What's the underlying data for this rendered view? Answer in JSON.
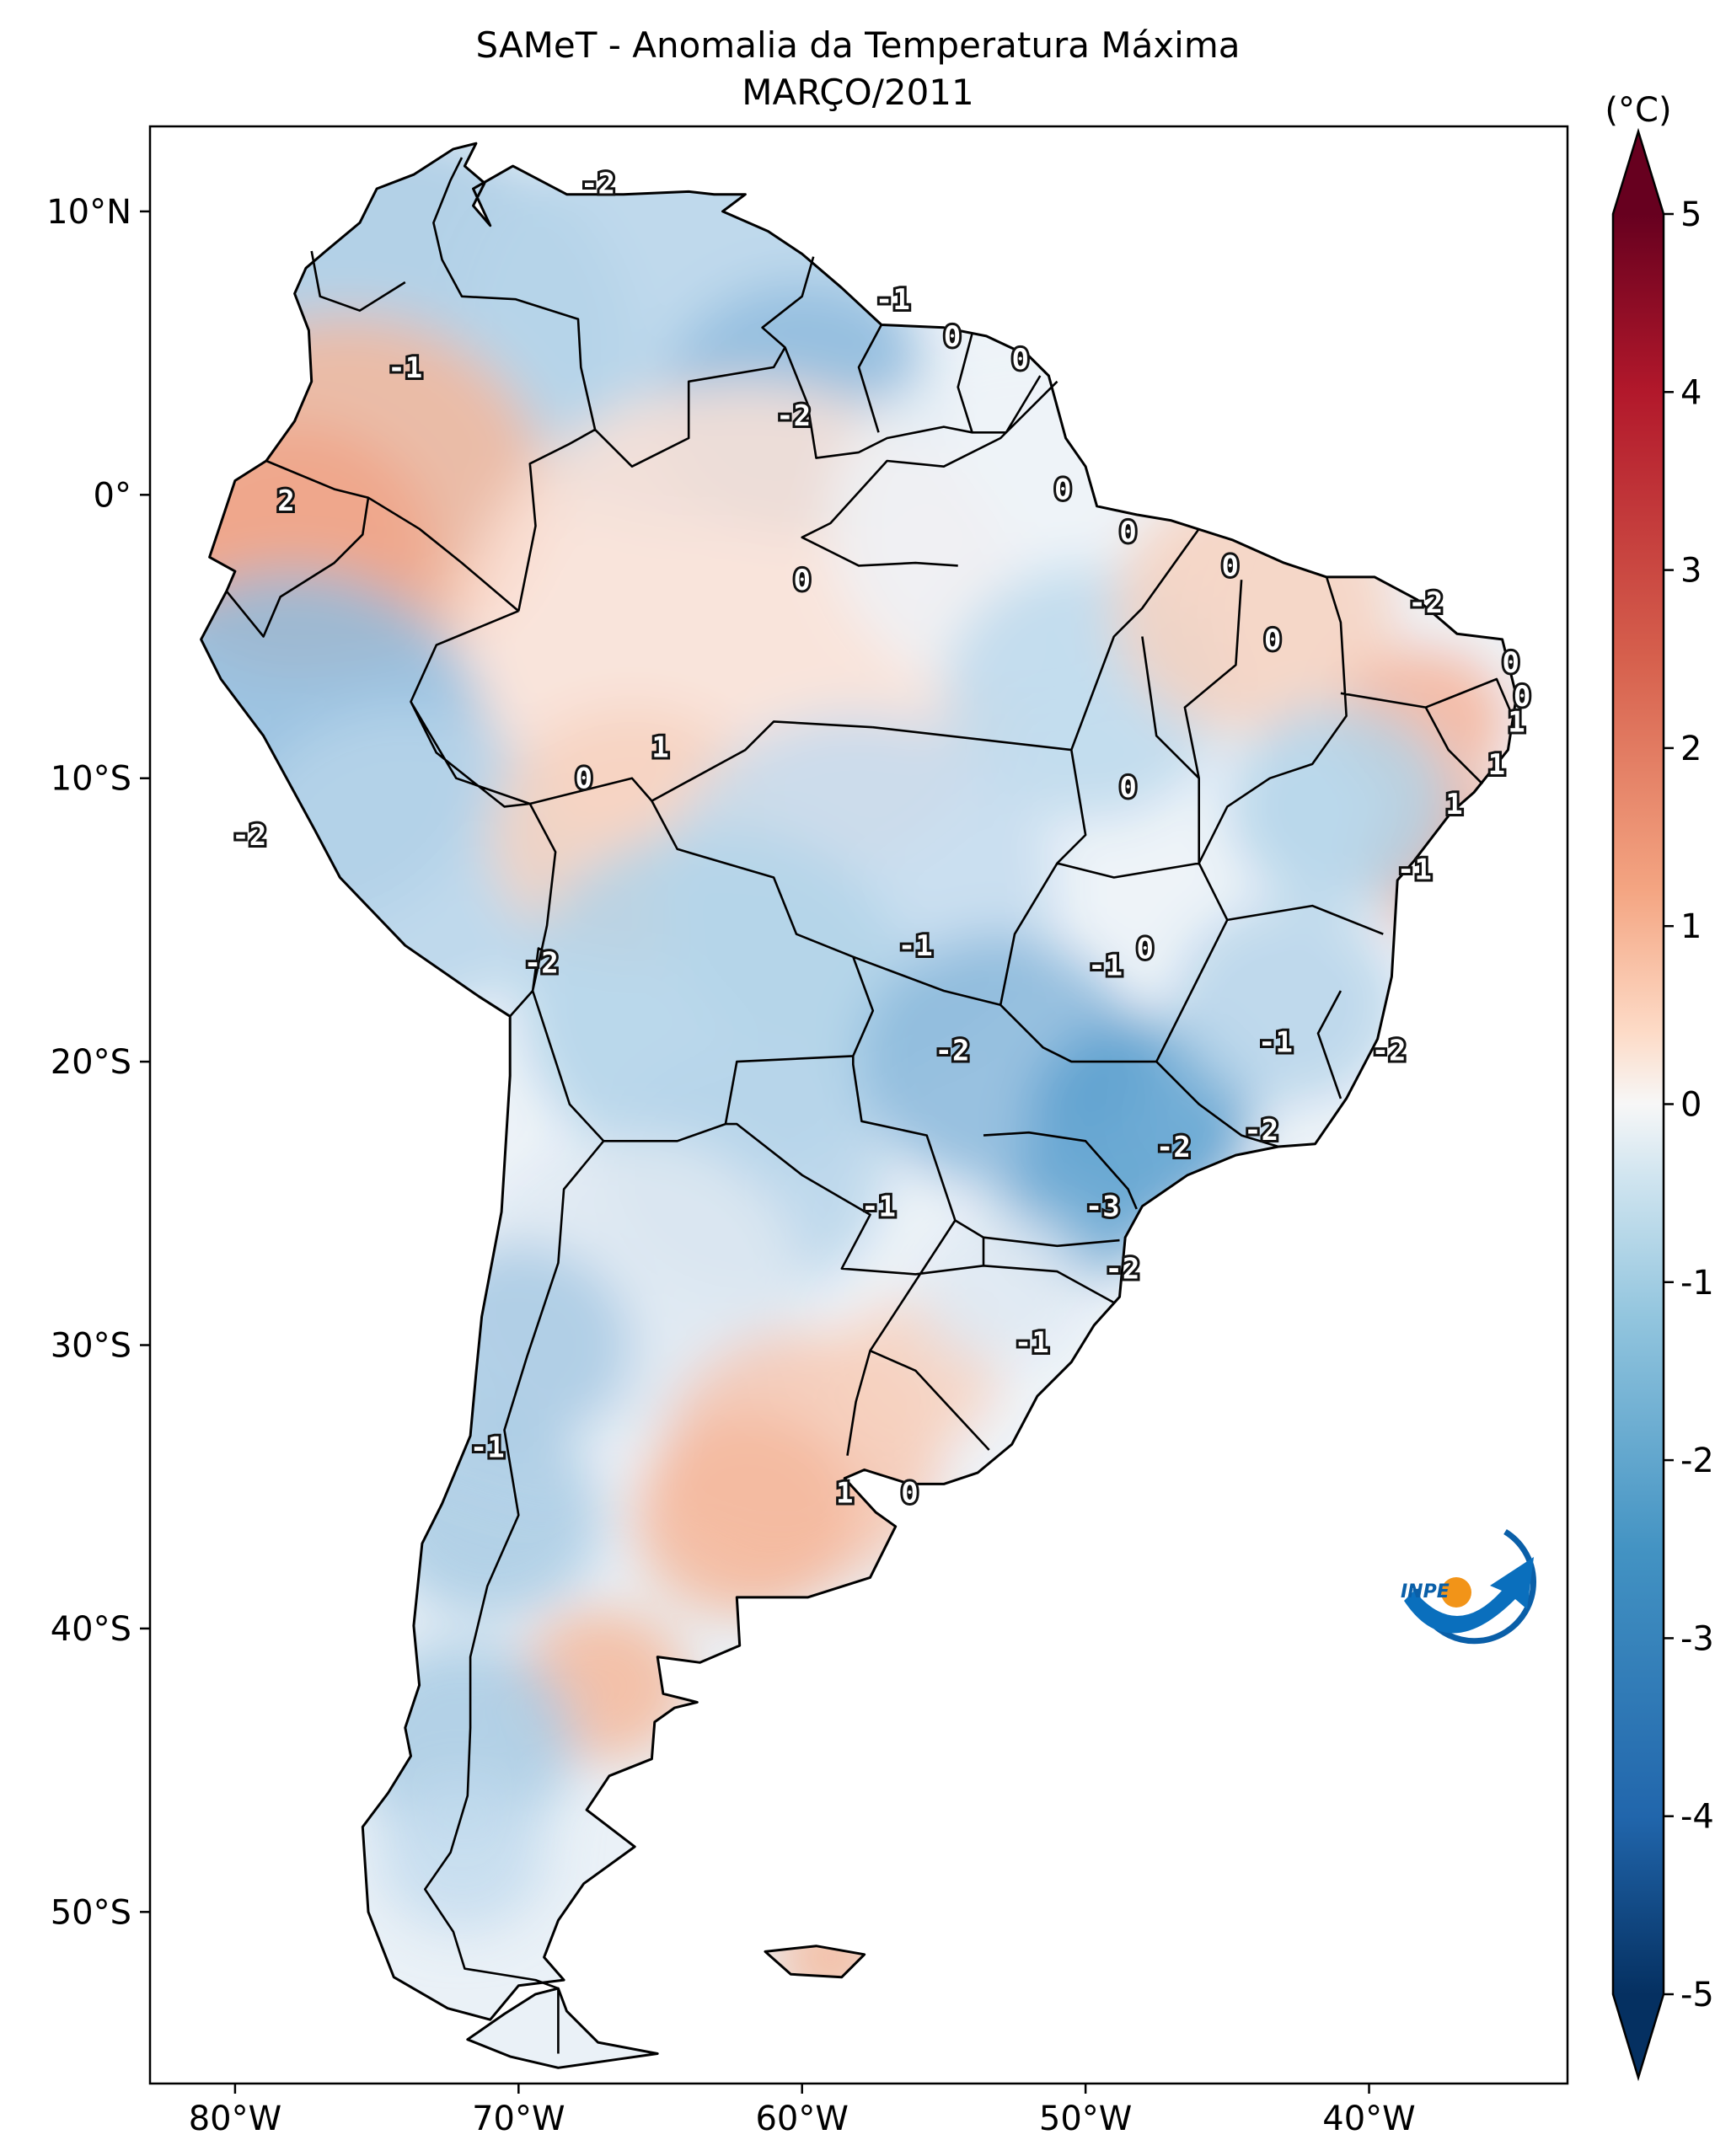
{
  "title_line1": "SAMeT - Anomalia da Temperatura Máxima",
  "title_line2": "MARÇO/2011",
  "colorbar": {
    "unit": "(°C)",
    "ticks": [
      "5",
      "4",
      "3",
      "2",
      "1",
      "0",
      "-1",
      "-2",
      "-3",
      "-4",
      "-5"
    ]
  },
  "lat_labels": [
    "10°N",
    "0°",
    "10°S",
    "20°S",
    "30°S",
    "40°S",
    "50°S"
  ],
  "lon_labels": [
    "80°W",
    "70°W",
    "60°W",
    "50°W",
    "40°W"
  ],
  "contour_labels": [
    {
      "t": "-2",
      "lon": -67.2,
      "lat": 11.0
    },
    {
      "t": "-1",
      "lon": -56.8,
      "lat": 6.9
    },
    {
      "t": "0",
      "lon": -54.7,
      "lat": 5.6
    },
    {
      "t": "0",
      "lon": -52.3,
      "lat": 4.8
    },
    {
      "t": "-1",
      "lon": -74.0,
      "lat": 4.5
    },
    {
      "t": "-2",
      "lon": -60.3,
      "lat": 2.8
    },
    {
      "t": "2",
      "lon": -78.2,
      "lat": -0.2
    },
    {
      "t": "0",
      "lon": -50.8,
      "lat": 0.2
    },
    {
      "t": "0",
      "lon": -48.5,
      "lat": -1.3
    },
    {
      "t": "0",
      "lon": -44.9,
      "lat": -2.5
    },
    {
      "t": "0",
      "lon": -60.0,
      "lat": -3.0
    },
    {
      "t": "-2",
      "lon": -38.0,
      "lat": -3.8
    },
    {
      "t": "0",
      "lon": -43.4,
      "lat": -5.1
    },
    {
      "t": "0",
      "lon": -35.0,
      "lat": -5.9
    },
    {
      "t": "0",
      "lon": -34.6,
      "lat": -7.1
    },
    {
      "t": "1",
      "lon": -34.8,
      "lat": -8.0
    },
    {
      "t": "1",
      "lon": -65.0,
      "lat": -8.9
    },
    {
      "t": "0",
      "lon": -67.7,
      "lat": -10.0
    },
    {
      "t": "1",
      "lon": -35.5,
      "lat": -9.5
    },
    {
      "t": "0",
      "lon": -48.5,
      "lat": -10.3
    },
    {
      "t": "1",
      "lon": -37.0,
      "lat": -10.9
    },
    {
      "t": "-2",
      "lon": -79.5,
      "lat": -12.0
    },
    {
      "t": "-1",
      "lon": -38.4,
      "lat": -13.2
    },
    {
      "t": "-1",
      "lon": -56.0,
      "lat": -15.9
    },
    {
      "t": "0",
      "lon": -47.9,
      "lat": -16.0
    },
    {
      "t": "-2",
      "lon": -69.2,
      "lat": -16.5
    },
    {
      "t": "-1",
      "lon": -49.3,
      "lat": -16.6
    },
    {
      "t": "-1",
      "lon": -43.3,
      "lat": -19.3
    },
    {
      "t": "-2",
      "lon": -54.7,
      "lat": -19.6
    },
    {
      "t": "-2",
      "lon": -39.3,
      "lat": -19.6
    },
    {
      "t": "-2",
      "lon": -46.9,
      "lat": -23.0
    },
    {
      "t": "-2",
      "lon": -43.8,
      "lat": -22.4
    },
    {
      "t": "-1",
      "lon": -57.3,
      "lat": -25.1
    },
    {
      "t": "-3",
      "lon": -49.4,
      "lat": -25.1
    },
    {
      "t": "-2",
      "lon": -48.7,
      "lat": -27.3
    },
    {
      "t": "-1",
      "lon": -51.9,
      "lat": -29.9
    },
    {
      "t": "-1",
      "lon": -71.1,
      "lat": -33.6
    },
    {
      "t": "1",
      "lon": -58.5,
      "lat": -35.2
    },
    {
      "t": "0",
      "lon": -56.2,
      "lat": -35.2
    }
  ]
}
